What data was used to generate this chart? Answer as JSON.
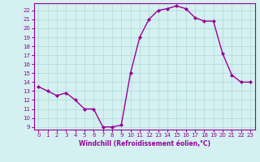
{
  "x": [
    0,
    1,
    2,
    3,
    4,
    5,
    6,
    7,
    8,
    9,
    10,
    11,
    12,
    13,
    14,
    15,
    16,
    17,
    18,
    19,
    20,
    21,
    22,
    23
  ],
  "y": [
    13.5,
    13.0,
    12.5,
    12.8,
    12.0,
    11.0,
    11.0,
    9.0,
    9.0,
    9.2,
    15.0,
    19.0,
    21.0,
    22.0,
    22.2,
    22.5,
    22.2,
    21.2,
    20.8,
    20.8,
    17.2,
    14.8,
    14.0,
    14.0
  ],
  "line_color": "#990099",
  "marker": "D",
  "marker_size": 2.0,
  "xlabel": "Windchill (Refroidissement éolien,°C)",
  "xlim": [
    -0.5,
    23.5
  ],
  "ylim": [
    8.7,
    22.8
  ],
  "yticks": [
    9,
    10,
    11,
    12,
    13,
    14,
    15,
    16,
    17,
    18,
    19,
    20,
    21,
    22
  ],
  "xticks": [
    0,
    1,
    2,
    3,
    4,
    5,
    6,
    7,
    8,
    9,
    10,
    11,
    12,
    13,
    14,
    15,
    16,
    17,
    18,
    19,
    20,
    21,
    22,
    23
  ],
  "xtick_labels": [
    "0",
    "1",
    "2",
    "3",
    "4",
    "5",
    "6",
    "7",
    "8",
    "9",
    "10",
    "11",
    "12",
    "13",
    "14",
    "15",
    "16",
    "17",
    "18",
    "19",
    "20",
    "21",
    "22",
    "23"
  ],
  "background_color": "#d4f0f0",
  "grid_color": "#b0d8d8",
  "tick_color": "#990099",
  "label_color": "#990099",
  "spine_color": "#990099",
  "linewidth": 1.0,
  "xlabel_fontsize": 5.5,
  "tick_fontsize": 5.0
}
